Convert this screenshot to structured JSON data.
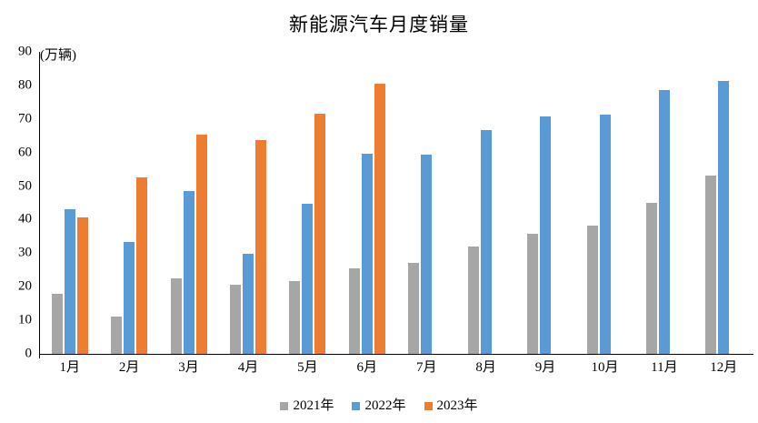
{
  "chart_data": {
    "type": "bar",
    "title": "新能源汽车月度销量",
    "unit_label": "(万辆)",
    "categories": [
      "1月",
      "2月",
      "3月",
      "4月",
      "5月",
      "6月",
      "7月",
      "8月",
      "9月",
      "10月",
      "11月",
      "12月"
    ],
    "series": [
      {
        "name": "2021年",
        "color": "#A6A6A6",
        "values": [
          17.9,
          11.0,
          22.6,
          20.6,
          21.7,
          25.6,
          27.1,
          32.1,
          35.7,
          38.3,
          45.0,
          53.1
        ]
      },
      {
        "name": "2022年",
        "color": "#5B9BD5",
        "values": [
          43.1,
          33.4,
          48.4,
          29.9,
          44.7,
          59.6,
          59.3,
          66.6,
          70.8,
          71.4,
          78.6,
          81.4
        ]
      },
      {
        "name": "2023年",
        "color": "#ED7D31",
        "values": [
          40.8,
          52.5,
          65.3,
          63.6,
          71.7,
          80.6,
          null,
          null,
          null,
          null,
          null,
          null
        ]
      }
    ],
    "ylim": [
      0,
      90
    ],
    "y_ticks": [
      0,
      10,
      20,
      30,
      40,
      50,
      60,
      70,
      80,
      90
    ],
    "grid": false,
    "legend_position": "bottom",
    "axis_color": "#000000"
  }
}
